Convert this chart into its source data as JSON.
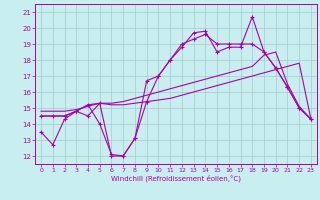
{
  "title": "",
  "xlabel": "Windchill (Refroidissement éolien,°C)",
  "xlim": [
    -0.5,
    23.5
  ],
  "ylim": [
    11.5,
    21.5
  ],
  "yticks": [
    12,
    13,
    14,
    15,
    16,
    17,
    18,
    19,
    20,
    21
  ],
  "xticks": [
    0,
    1,
    2,
    3,
    4,
    5,
    6,
    7,
    8,
    9,
    10,
    11,
    12,
    13,
    14,
    15,
    16,
    17,
    18,
    19,
    20,
    21,
    22,
    23
  ],
  "bg_color": "#c8eef0",
  "grid_color": "#a0cccc",
  "line_color": "#aa00aa",
  "line1_x": [
    0,
    1,
    2,
    3,
    4,
    5,
    6,
    7,
    8,
    9,
    10,
    11,
    12,
    13,
    14,
    15,
    16,
    17,
    18,
    19,
    20,
    21,
    22,
    23
  ],
  "line1_y": [
    13.5,
    12.7,
    14.3,
    14.8,
    14.5,
    15.3,
    12.0,
    12.0,
    13.1,
    16.7,
    17.0,
    18.0,
    18.8,
    19.7,
    19.8,
    18.5,
    18.8,
    18.8,
    20.7,
    18.5,
    17.5,
    16.3,
    15.0,
    14.3
  ],
  "line2_x": [
    0,
    1,
    2,
    3,
    4,
    5,
    6,
    7,
    8,
    9,
    10,
    11,
    12,
    13,
    14,
    15,
    16,
    17,
    18,
    19,
    20,
    21,
    22,
    23
  ],
  "line2_y": [
    14.5,
    14.5,
    14.5,
    14.8,
    15.2,
    15.3,
    15.2,
    15.2,
    15.3,
    15.4,
    15.5,
    15.6,
    15.8,
    16.0,
    16.2,
    16.4,
    16.6,
    16.8,
    17.0,
    17.2,
    17.4,
    17.6,
    17.8,
    14.3
  ],
  "line3_x": [
    0,
    1,
    2,
    3,
    4,
    5,
    6,
    7,
    8,
    9,
    10,
    11,
    12,
    13,
    14,
    15,
    16,
    17,
    18,
    19,
    20,
    21,
    22,
    23
  ],
  "line3_y": [
    14.8,
    14.8,
    14.8,
    14.9,
    15.1,
    15.3,
    15.3,
    15.4,
    15.6,
    15.8,
    16.0,
    16.2,
    16.4,
    16.6,
    16.8,
    17.0,
    17.2,
    17.4,
    17.6,
    18.3,
    18.5,
    16.5,
    15.1,
    14.3
  ],
  "line4_x": [
    0,
    1,
    2,
    3,
    4,
    5,
    6,
    7,
    8,
    9,
    10,
    11,
    12,
    13,
    14,
    15,
    16,
    17,
    18,
    19,
    20,
    21,
    22,
    23
  ],
  "line4_y": [
    14.5,
    14.5,
    14.5,
    14.8,
    15.2,
    14.0,
    12.1,
    12.0,
    13.1,
    15.4,
    17.0,
    18.0,
    19.0,
    19.3,
    19.6,
    19.0,
    19.0,
    19.0,
    19.0,
    18.5,
    17.5,
    16.3,
    15.0,
    14.3
  ]
}
